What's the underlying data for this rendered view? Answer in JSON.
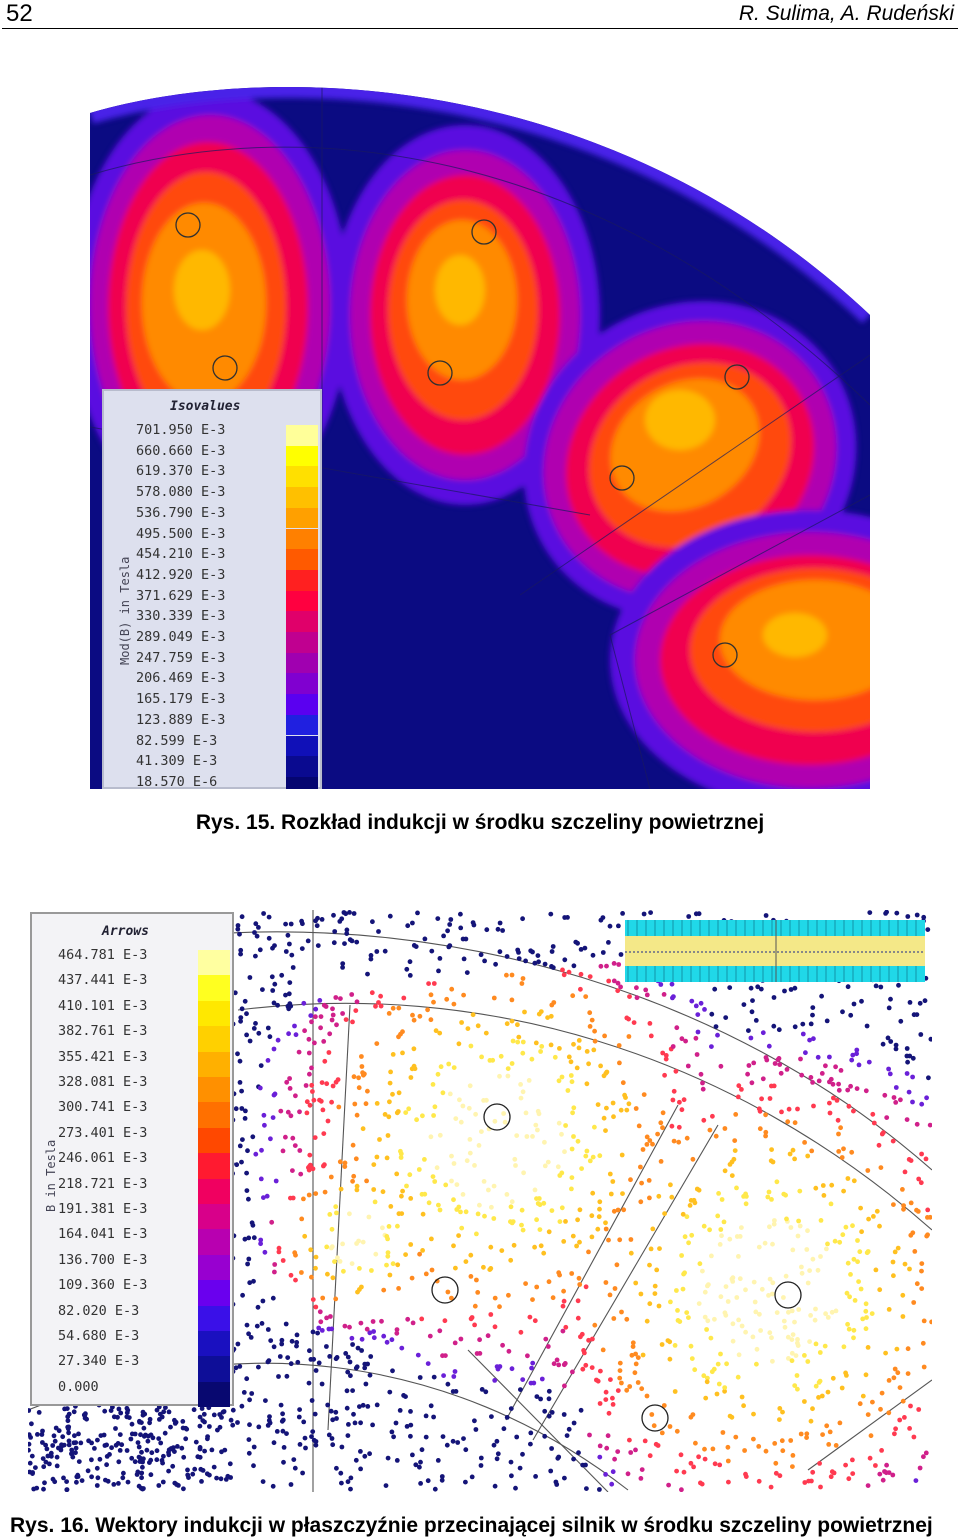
{
  "header": {
    "page_number": "52",
    "authors": "R. Sulima, A. Rudeński"
  },
  "figure15": {
    "caption": "Rys. 15. Rozkład indukcji w środku szczeliny powietrznej",
    "legend": {
      "title": "Isovalues",
      "unit": "Mod(B) in Tesla",
      "values": [
        "701.950 E-3",
        "660.660 E-3",
        "619.370 E-3",
        "578.080 E-3",
        "536.790 E-3",
        "495.500 E-3",
        "454.210 E-3",
        "412.920 E-3",
        "371.629 E-3",
        "330.339 E-3",
        "289.049 E-3",
        "247.759 E-3",
        "206.469 E-3",
        "165.179 E-3",
        "123.889 E-3",
        "82.599 E-3",
        "41.309 E-3",
        "18.570 E-6"
      ],
      "colors": [
        "#ffff99",
        "#ffff00",
        "#ffe000",
        "#ffc000",
        "#ffa000",
        "#ff8000",
        "#ff5a00",
        "#ff2020",
        "#ff0040",
        "#e0006a",
        "#c00090",
        "#a000b0",
        "#8000d0",
        "#5a00f0",
        "#2020e0",
        "#1010b8",
        "#0a0a90",
        "#050570"
      ]
    }
  },
  "figure16": {
    "caption": "Rys. 16. Wektory indukcji w płaszczyźnie przecinającej silnik w środku szczeliny powietrznej",
    "legend": {
      "title": "Arrows",
      "unit": "B in Tesla",
      "values": [
        "464.781 E-3",
        "437.441 E-3",
        "410.101 E-3",
        "382.761 E-3",
        "355.421 E-3",
        "328.081 E-3",
        "300.741 E-3",
        "273.401 E-3",
        "246.061 E-3",
        "218.721 E-3",
        "191.381 E-3",
        "164.041 E-3",
        "136.700 E-3",
        "109.360 E-3",
        "82.020 E-3",
        "54.680 E-3",
        "27.340 E-3",
        "0.000"
      ],
      "colors": [
        "#ffffa0",
        "#ffff20",
        "#ffe800",
        "#ffd000",
        "#ffb000",
        "#ff9000",
        "#ff7000",
        "#ff4800",
        "#ff1a30",
        "#f00060",
        "#d8008a",
        "#b800b0",
        "#9800d0",
        "#6a00ee",
        "#3a10e8",
        "#1a10c0",
        "#0e0e98",
        "#080870"
      ]
    }
  }
}
